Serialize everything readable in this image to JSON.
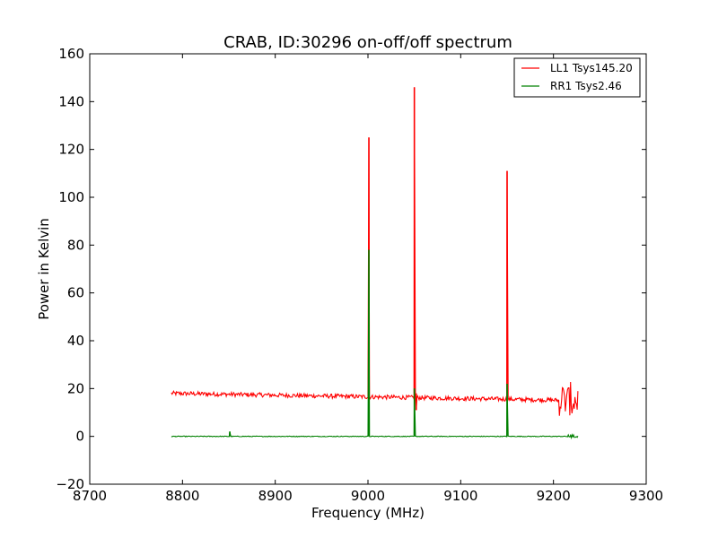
{
  "chart_data": {
    "type": "line",
    "title": "CRAB, ID:30296 on-off/off spectrum",
    "xlabel": "Frequency (MHz)",
    "ylabel": "Power in Kelvin",
    "xlim": [
      8700,
      9300
    ],
    "ylim": [
      -20,
      160
    ],
    "xticks": [
      8700,
      8800,
      8900,
      9000,
      9100,
      9200,
      9300
    ],
    "yticks": [
      -20,
      0,
      20,
      40,
      60,
      80,
      100,
      120,
      140,
      160
    ],
    "grid": false,
    "legend_position": "top-right",
    "series": [
      {
        "name": "LL1 Tsys145.20",
        "color": "#ff0000",
        "x_range": [
          8788,
          9227
        ],
        "baseline_start": 18,
        "baseline_end": 15,
        "noise": 0.9,
        "spikes": [
          {
            "x": 9001,
            "y": 125
          },
          {
            "x": 9050,
            "y": 146
          },
          {
            "x": 9052,
            "y": 11
          },
          {
            "x": 9150,
            "y": 111
          }
        ],
        "edge_turbulence": {
          "from": 9205,
          "to": 9227,
          "amplitude": 7
        }
      },
      {
        "name": "RR1 Tsys2.46",
        "color": "#008000",
        "x_range": [
          8788,
          9227
        ],
        "baseline_start": 0,
        "baseline_end": 0,
        "noise": 0.15,
        "spikes": [
          {
            "x": 8851,
            "y": 2
          },
          {
            "x": 9001,
            "y": 78
          },
          {
            "x": 9050,
            "y": 20
          },
          {
            "x": 9150,
            "y": 22
          }
        ],
        "edge_turbulence": {
          "from": 9215,
          "to": 9227,
          "amplitude": 0.8
        }
      }
    ]
  }
}
